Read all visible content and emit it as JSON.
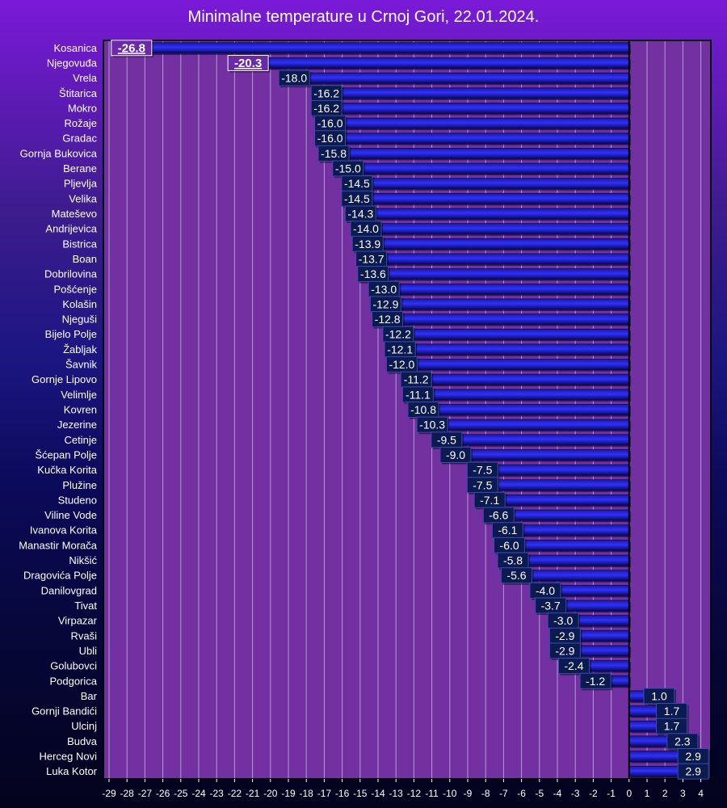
{
  "chart_data": {
    "type": "bar",
    "orientation": "horizontal",
    "title": "Minimalne temperature u Crnoj Gori, 22.01.2024.",
    "xlabel": "",
    "ylabel": "",
    "xlim": [
      -29,
      4
    ],
    "ticks": [
      "-29",
      "-28",
      "-27",
      "-26",
      "-25",
      "-24",
      "-23",
      "-22",
      "-21",
      "-20",
      "-19",
      "-18",
      "-17",
      "-16",
      "-15",
      "-14",
      "-13",
      "-12",
      "-11",
      "-10",
      "-9",
      "-8",
      "-7",
      "-6",
      "-5",
      "-4",
      "-3",
      "-2",
      "-1",
      "0",
      "1",
      "2",
      "3",
      "4"
    ],
    "grid": true,
    "categories": [
      "Kosanica",
      "Njegovuđa",
      "Vrela",
      "Štitarica",
      "Mokro",
      "Rožaje",
      "Gradac",
      "Gornja Bukovica",
      "Berane",
      "Pljevlja",
      "Velika",
      "Mateševo",
      "Andrijevica",
      "Bistrica",
      "Boan",
      "Dobrilovina",
      "Pošćenje",
      "Kolašin",
      "Njeguši",
      "Bijelo Polje",
      "Žabljak",
      "Šavnik",
      "Gornje Lipovo",
      "Velimlje",
      "Kovren",
      "Jezerine",
      "Cetinje",
      "Šćepan Polje",
      "Kučka Korita",
      "Plužine",
      "Studeno",
      "Viline Vode",
      "Ivanova Korita",
      "Manastir Morača",
      "Nikšić",
      "Dragovića Polje",
      "Danilovgrad",
      "Tivat",
      "Virpazar",
      "Rvaši",
      "Ubli",
      "Golubovci",
      "Podgorica",
      "Bar",
      "Gornji Bandići",
      "Ulcinj",
      "Budva",
      "Herceg Novi",
      "Luka Kotor"
    ],
    "values": [
      -26.8,
      -20.3,
      -18.0,
      -16.2,
      -16.2,
      -16.0,
      -16.0,
      -15.8,
      -15.0,
      -14.5,
      -14.5,
      -14.3,
      -14.0,
      -13.9,
      -13.7,
      -13.6,
      -13.0,
      -12.9,
      -12.8,
      -12.2,
      -12.1,
      -12.0,
      -11.2,
      -11.1,
      -10.8,
      -10.3,
      -9.5,
      -9.0,
      -7.5,
      -7.5,
      -7.1,
      -6.6,
      -6.1,
      -6.0,
      -5.8,
      -5.6,
      -4.0,
      -3.7,
      -3.0,
      -2.9,
      -2.9,
      -2.4,
      -1.2,
      1.0,
      1.7,
      1.7,
      2.3,
      2.9,
      2.9
    ],
    "value_labels": [
      "-26.8",
      "-20.3",
      "-18.0",
      "-16.2",
      "-16.2",
      "-16.0",
      "-16.0",
      "-15.8",
      "-15.0",
      "-14.5",
      "-14.5",
      "-14.3",
      "-14.0",
      "-13.9",
      "-13.7",
      "-13.6",
      "-13.0",
      "-12.9",
      "-12.8",
      "-12.2",
      "-12.1",
      "-12.0",
      "-11.2",
      "-11.1",
      "-10.8",
      "-10.3",
      "-9.5",
      "-9.0",
      "-7.5",
      "-7.5",
      "-7.1",
      "-6.6",
      "-6.1",
      "-6.0",
      "-5.8",
      "-5.6",
      "-4.0",
      "-3.7",
      "-3.0",
      "-2.9",
      "-2.9",
      "-2.4",
      "-1.2",
      "1.0",
      "1.7",
      "1.7",
      "2.3",
      "2.9",
      "2.9"
    ],
    "highlight": [
      "Kosanica",
      "Njegovuđa"
    ]
  },
  "colors": {
    "plot_bg": "#7230a0",
    "grid": "#b49ad8",
    "bar_dark": "#0a0a6a",
    "bar_mid": "#2a2af0",
    "bar_light": "#3b3bff",
    "label_box": "#0c1a52",
    "label_box_border": "#3a4cae",
    "highlight_box": "#6a2aa8",
    "highlight_border": "#ffffff"
  }
}
